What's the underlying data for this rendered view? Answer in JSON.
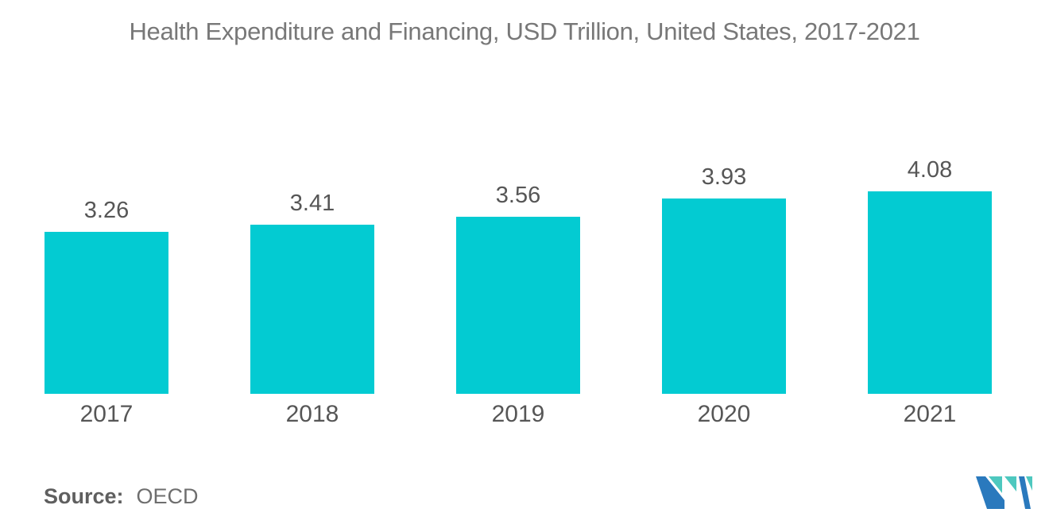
{
  "chart_data": {
    "type": "bar",
    "title": "Health Expenditure and Financing, USD Trillion, United States, 2017-2021",
    "categories": [
      "2017",
      "2018",
      "2019",
      "2020",
      "2021"
    ],
    "values": [
      3.26,
      3.41,
      3.56,
      3.93,
      4.08
    ],
    "data_labels": [
      "3.26",
      "3.41",
      "3.56",
      "3.93",
      "4.08"
    ],
    "xlabel": "",
    "ylabel": "",
    "ylim": [
      0,
      4.08
    ],
    "grid": false,
    "legend": false,
    "axes_visible": false,
    "bar_color": "#03CBD2",
    "label_color": "#565656",
    "title_color": "#787878"
  },
  "source": {
    "label": "Source:",
    "value": "OECD"
  },
  "logo": {
    "colors": {
      "blue": "#2A79BD",
      "teal": "#4EC8BF"
    }
  }
}
